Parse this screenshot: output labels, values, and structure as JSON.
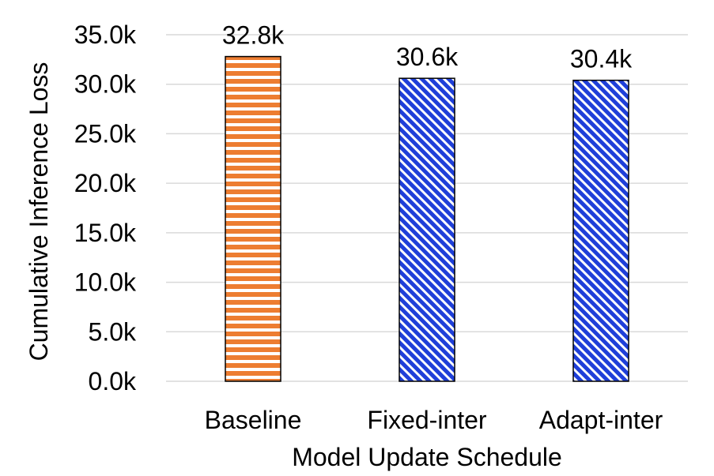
{
  "chart_data": {
    "type": "bar",
    "categories": [
      "Baseline",
      "Fixed-inter",
      "Adapt-inter"
    ],
    "values": [
      32800,
      30600,
      30400
    ],
    "value_labels": [
      "32.8k",
      "30.6k",
      "30.4k"
    ],
    "title": "",
    "xlabel": "Model Update Schedule",
    "ylabel": "Cumulative Inference Loss",
    "ylim": [
      0,
      35000
    ],
    "yticks": [
      0,
      5000,
      10000,
      15000,
      20000,
      25000,
      30000,
      35000
    ],
    "ytick_labels": [
      "0.0k",
      "5.0k",
      "10.0k",
      "15.0k",
      "20.0k",
      "25.0k",
      "30.0k",
      "35.0k"
    ],
    "grid": true,
    "legend": "none",
    "bar_styles": [
      {
        "pattern": "horizontal-stripes",
        "color": "#ED7D31"
      },
      {
        "pattern": "diagonal-stripes",
        "color": "#1F3FD9"
      },
      {
        "pattern": "diagonal-stripes",
        "color": "#1F3FD9"
      }
    ]
  }
}
